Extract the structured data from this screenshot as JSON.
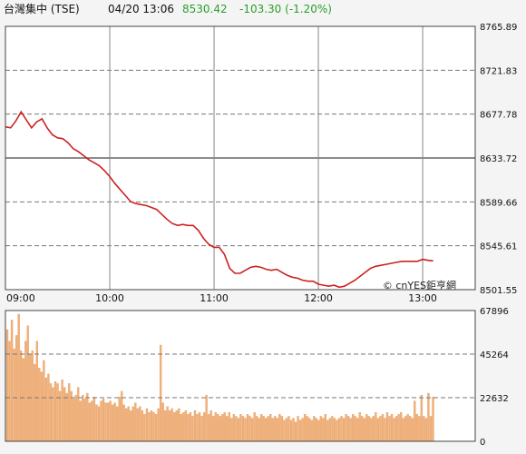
{
  "header": {
    "name": "台灣集中 (TSE)",
    "datetime": "04/20 13:06",
    "price": "8530.42",
    "change": "-103.30 (-1.20%)",
    "price_color": "#2aa02a",
    "change_color": "#2aa02a"
  },
  "colors": {
    "price_line": "#cc2222",
    "volume_bar": "#f0b07a",
    "volume_bar_stroke": "#e39a5a",
    "grid_dashed": "#777777",
    "grid_solid": "#666666",
    "border": "#444444",
    "plot_bg": "#ffffff"
  },
  "watermark": "© cnYES鉅亨網",
  "chart_data": [
    {
      "type": "line",
      "series": [
        {
          "x": [
            "09:00",
            "09:03",
            "09:06",
            "09:09",
            "09:12",
            "09:15",
            "09:18",
            "09:21",
            "09:24",
            "09:27",
            "09:30",
            "09:33",
            "09:36",
            "09:39",
            "09:42",
            "09:45",
            "09:48",
            "09:51",
            "09:54",
            "09:57",
            "10:00",
            "10:03",
            "10:06",
            "10:09",
            "10:12",
            "10:15",
            "10:18",
            "10:21",
            "10:24",
            "10:27",
            "10:30",
            "10:33",
            "10:36",
            "10:39",
            "10:42",
            "10:45",
            "10:48",
            "10:51",
            "10:54",
            "10:57",
            "11:00",
            "11:03",
            "11:06",
            "11:09",
            "11:12",
            "11:15",
            "11:18",
            "11:21",
            "11:24",
            "11:27",
            "11:30",
            "11:33",
            "11:36",
            "11:39",
            "11:42",
            "11:45",
            "11:48",
            "11:51",
            "11:54",
            "11:57",
            "12:00",
            "12:03",
            "12:06",
            "12:09",
            "12:12",
            "12:15",
            "12:18",
            "12:21",
            "12:24",
            "12:27",
            "12:30",
            "12:33",
            "12:36",
            "12:39",
            "12:42",
            "12:45",
            "12:48",
            "12:51",
            "12:54",
            "12:57",
            "13:00",
            "13:03",
            "13:06"
          ],
          "values": [
            8665,
            8664,
            8671,
            8680,
            8672,
            8664,
            8670,
            8673,
            8664,
            8657,
            8654,
            8653,
            8649,
            8643,
            8640,
            8636,
            8632,
            8629,
            8626,
            8621,
            8615,
            8608,
            8602,
            8596,
            8590,
            8588,
            8587,
            8586,
            8584,
            8582,
            8577,
            8572,
            8568,
            8566,
            8567,
            8566,
            8566,
            8561,
            8553,
            8547,
            8544,
            8544,
            8537,
            8523,
            8518,
            8518,
            8521,
            8524,
            8525,
            8524,
            8522,
            8521,
            8522,
            8519,
            8516,
            8514,
            8513,
            8511,
            8510,
            8510,
            8507,
            8506,
            8505,
            8506,
            8504,
            8505,
            8508,
            8511,
            8515,
            8519,
            8523,
            8525,
            8526,
            8527,
            8528,
            8529,
            8530,
            8530,
            8530,
            8530,
            8532,
            8531,
            8530.42
          ]
        }
      ],
      "x_ticks": [
        "09:00",
        "10:00",
        "11:00",
        "12:00",
        "13:00"
      ],
      "y_ticks": [
        "8765.89",
        "8721.83",
        "8677.78",
        "8633.72",
        "8589.66",
        "8545.61",
        "8501.55"
      ],
      "ylim": [
        8501.55,
        8765.89
      ],
      "reference_value": 8633.72,
      "grid": true
    },
    {
      "type": "bar",
      "series": [
        {
          "values": [
            58000,
            52000,
            63000,
            48000,
            55000,
            66000,
            47000,
            43000,
            52000,
            60000,
            45000,
            47000,
            40000,
            52000,
            38000,
            36000,
            42000,
            33000,
            35000,
            30000,
            28000,
            31000,
            30000,
            26000,
            32000,
            28000,
            25000,
            30000,
            26000,
            22000,
            24000,
            28000,
            21000,
            24000,
            22000,
            25000,
            20000,
            21000,
            23000,
            19000,
            18000,
            21000,
            22000,
            20000,
            20000,
            21000,
            19000,
            20000,
            18000,
            23000,
            26000,
            19000,
            17000,
            18000,
            16000,
            18000,
            20000,
            17000,
            18000,
            16000,
            14000,
            17000,
            15000,
            16000,
            15000,
            14000,
            17000,
            50000,
            20000,
            16000,
            18000,
            16000,
            17000,
            15000,
            16000,
            17000,
            14000,
            15000,
            16000,
            14000,
            15000,
            13000,
            16000,
            14000,
            15000,
            13000,
            15000,
            24000,
            14000,
            16000,
            13000,
            15000,
            14000,
            13000,
            14000,
            15000,
            13000,
            15000,
            12000,
            14000,
            13000,
            12000,
            14000,
            13000,
            12000,
            14000,
            13000,
            12000,
            15000,
            13000,
            12000,
            14000,
            13000,
            12000,
            13000,
            14000,
            12000,
            13000,
            12000,
            14000,
            13000,
            11000,
            12000,
            13000,
            11000,
            12000,
            10000,
            13000,
            11000,
            12000,
            14000,
            13000,
            12000,
            11000,
            13000,
            12000,
            11000,
            13000,
            12000,
            14000,
            11000,
            12000,
            13000,
            12000,
            11000,
            12000,
            13000,
            12000,
            14000,
            13000,
            12000,
            14000,
            13000,
            12000,
            15000,
            13000,
            12000,
            14000,
            13000,
            12000,
            13000,
            15000,
            12000,
            13000,
            14000,
            12000,
            15000,
            13000,
            14000,
            12000,
            13000,
            14000,
            15000,
            12000,
            13000,
            14000,
            13000,
            12000,
            21000,
            14000,
            13000,
            24000,
            13000,
            12000,
            25000,
            13000,
            23000
          ]
        }
      ],
      "y_ticks": [
        "67896",
        "45264",
        "22632",
        "0"
      ],
      "ylim": [
        0,
        67896
      ],
      "grid": true
    }
  ]
}
